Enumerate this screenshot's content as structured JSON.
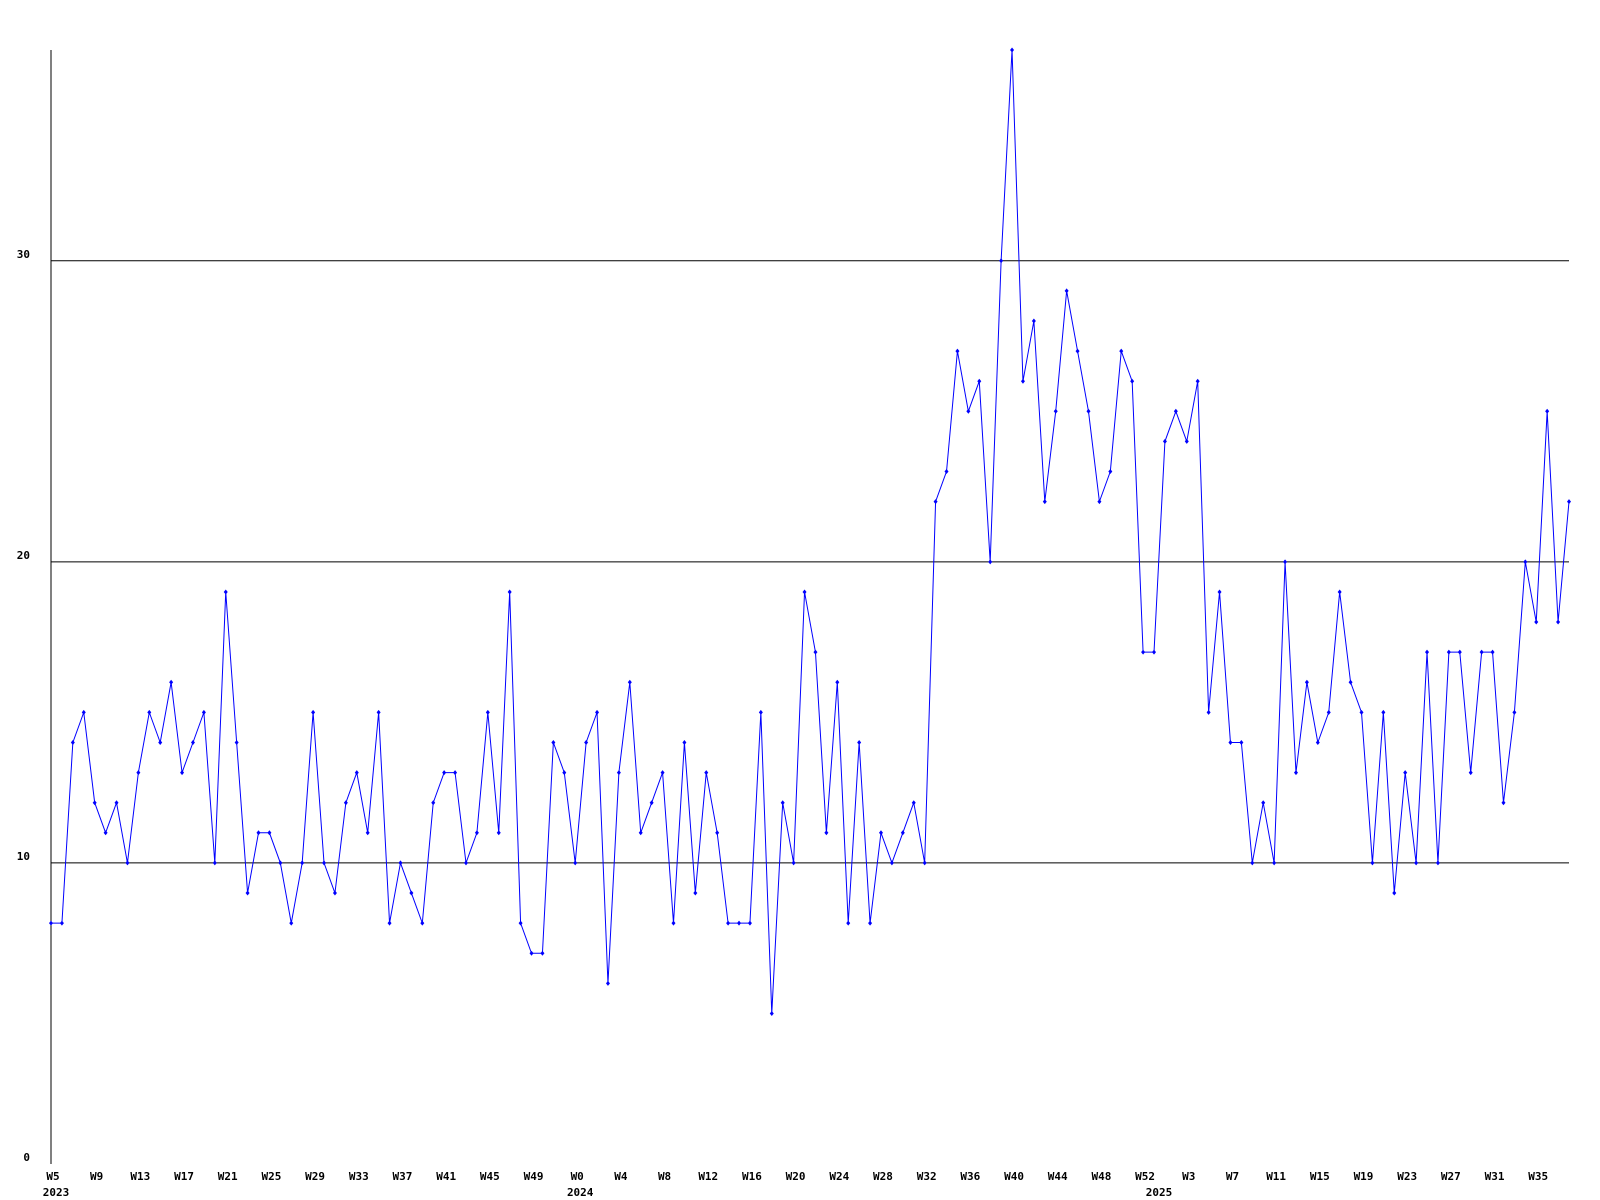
{
  "chart_data": {
    "type": "line",
    "categories": [
      "W5",
      null,
      null,
      null,
      "W9",
      null,
      null,
      null,
      "W13",
      null,
      null,
      null,
      "W17",
      null,
      null,
      null,
      "W21",
      null,
      null,
      null,
      "W25",
      null,
      null,
      null,
      "W29",
      null,
      null,
      null,
      "W33",
      null,
      null,
      null,
      "W37",
      null,
      null,
      null,
      "W41",
      null,
      null,
      null,
      "W45",
      null,
      null,
      null,
      "W49",
      null,
      null,
      null,
      "W0",
      null,
      null,
      null,
      "W4",
      null,
      null,
      null,
      "W8",
      null,
      null,
      null,
      "W12",
      null,
      null,
      null,
      "W16",
      null,
      null,
      null,
      "W20",
      null,
      null,
      null,
      "W24",
      null,
      null,
      null,
      "W28",
      null,
      null,
      null,
      "W32",
      null,
      null,
      null,
      "W36",
      null,
      null,
      null,
      "W40",
      null,
      null,
      null,
      "W44",
      null,
      null,
      null,
      "W48",
      null,
      null,
      null,
      "W52",
      null,
      null,
      null,
      "W3",
      null,
      null,
      null,
      "W7",
      null,
      null,
      null,
      "W11",
      null,
      null,
      null,
      "W15",
      null,
      null,
      null,
      "W19",
      null,
      null,
      null,
      "W23",
      null,
      null,
      null,
      "W27",
      null,
      null,
      null,
      "W31",
      null,
      null,
      null,
      "W35",
      null,
      null,
      null
    ],
    "year_labels": [
      "2023",
      null,
      null,
      null,
      null,
      null,
      null,
      null,
      null,
      null,
      null,
      null,
      null,
      null,
      null,
      null,
      null,
      null,
      null,
      null,
      null,
      null,
      null,
      null,
      null,
      null,
      null,
      null,
      null,
      null,
      null,
      null,
      null,
      null,
      null,
      null,
      null,
      null,
      null,
      null,
      null,
      null,
      null,
      null,
      null,
      null,
      null,
      null,
      "2024",
      null,
      null,
      null,
      null,
      null,
      null,
      null,
      null,
      null,
      null,
      null,
      null,
      null,
      null,
      null,
      null,
      null,
      null,
      null,
      null,
      null,
      null,
      null,
      null,
      null,
      null,
      null,
      null,
      null,
      null,
      null,
      null,
      null,
      null,
      null,
      null,
      null,
      null,
      null,
      null,
      null,
      null,
      null,
      null,
      null,
      null,
      null,
      null,
      null,
      null,
      null,
      null,
      "2025",
      null,
      null,
      null,
      null,
      null,
      null,
      null,
      null,
      null,
      null,
      null,
      null,
      null,
      null,
      null,
      null,
      null,
      null,
      null,
      null,
      null,
      null,
      null,
      null,
      null,
      null,
      null,
      null,
      null,
      null,
      null,
      null,
      null,
      null,
      null,
      null,
      null,
      null
    ],
    "series": [
      {
        "color": "#0000ff",
        "values": [
          8,
          8,
          14,
          15,
          12,
          11,
          12,
          10,
          13,
          15,
          14,
          16,
          13,
          14,
          15,
          10,
          19,
          14,
          9,
          11,
          11,
          10,
          8,
          10,
          15,
          10,
          9,
          12,
          13,
          11,
          15,
          8,
          10,
          9,
          8,
          12,
          13,
          13,
          10,
          11,
          15,
          11,
          19,
          8,
          7,
          7,
          14,
          13,
          10,
          14,
          15,
          6,
          13,
          16,
          11,
          12,
          13,
          8,
          14,
          9,
          13,
          11,
          8,
          8,
          8,
          15,
          5,
          12,
          10,
          19,
          17,
          11,
          16,
          8,
          14,
          8,
          11,
          10,
          11,
          12,
          10,
          22,
          23,
          27,
          25,
          26,
          20,
          30,
          37,
          26,
          28,
          22,
          25,
          29,
          27,
          25,
          22,
          23,
          27,
          26,
          17,
          17,
          24,
          25,
          24,
          26,
          15,
          19,
          14,
          14,
          10,
          12,
          10,
          20,
          13,
          16,
          14,
          15,
          19,
          16,
          15,
          10,
          15,
          9,
          13,
          10,
          17,
          10,
          17,
          17,
          13,
          17,
          17,
          12,
          15,
          20,
          18,
          25,
          18,
          22
        ]
      }
    ],
    "ylim": [
      0,
      37
    ],
    "yticks": [
      0,
      10,
      20,
      30
    ],
    "grid": true
  }
}
